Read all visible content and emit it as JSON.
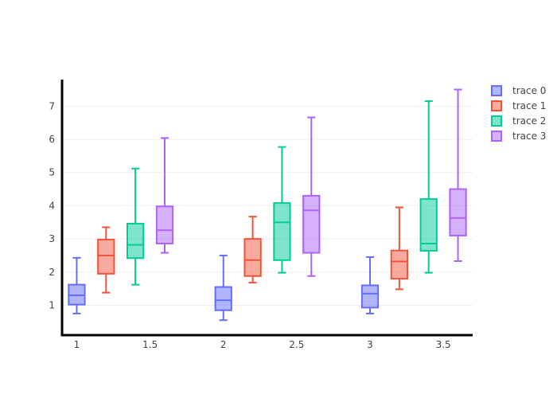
{
  "chart_data": {
    "type": "box",
    "title": "",
    "xlabel": "",
    "ylabel": "",
    "xlim": [
      0.9,
      3.7
    ],
    "ylim": [
      0.1,
      7.8
    ],
    "x_ticks": [
      1,
      1.5,
      2,
      2.5,
      3,
      3.5
    ],
    "x_tick_labels": [
      "1",
      "1.5",
      "2",
      "2.5",
      "3",
      "3.5"
    ],
    "y_ticks": [
      1,
      2,
      3,
      4,
      5,
      6,
      7
    ],
    "y_tick_labels": [
      "1",
      "2",
      "3",
      "4",
      "5",
      "6",
      "7"
    ],
    "box_width": 0.11,
    "grid": "horizontal",
    "legend": "right",
    "series": [
      {
        "name": "trace 0",
        "color": "#636efa",
        "fill": "rgba(99,110,250,0.5)",
        "boxes": [
          {
            "x": 1.0,
            "min": 0.75,
            "q1": 1.02,
            "median": 1.3,
            "q3": 1.62,
            "max": 2.43
          },
          {
            "x": 2.0,
            "min": 0.55,
            "q1": 0.85,
            "median": 1.15,
            "q3": 1.55,
            "max": 2.5
          },
          {
            "x": 3.0,
            "min": 0.75,
            "q1": 0.93,
            "median": 1.35,
            "q3": 1.6,
            "max": 2.45
          }
        ]
      },
      {
        "name": "trace 1",
        "color": "#ef553b",
        "fill": "rgba(239,85,59,0.5)",
        "boxes": [
          {
            "x": 1.2,
            "min": 1.38,
            "q1": 1.95,
            "median": 2.5,
            "q3": 2.98,
            "max": 3.35
          },
          {
            "x": 2.2,
            "min": 1.68,
            "q1": 1.88,
            "median": 2.36,
            "q3": 3.0,
            "max": 3.67
          },
          {
            "x": 3.2,
            "min": 1.48,
            "q1": 1.8,
            "median": 2.32,
            "q3": 2.65,
            "max": 3.95
          }
        ]
      },
      {
        "name": "trace 2",
        "color": "#00cc96",
        "fill": "rgba(0,204,150,0.5)",
        "boxes": [
          {
            "x": 1.4,
            "min": 1.62,
            "q1": 2.42,
            "median": 2.82,
            "q3": 3.46,
            "max": 5.12
          },
          {
            "x": 2.4,
            "min": 1.98,
            "q1": 2.36,
            "median": 3.5,
            "q3": 4.08,
            "max": 5.77
          },
          {
            "x": 3.4,
            "min": 1.98,
            "q1": 2.64,
            "median": 2.86,
            "q3": 4.2,
            "max": 7.15
          }
        ]
      },
      {
        "name": "trace 3",
        "color": "#ab63fa",
        "fill": "rgba(171,99,250,0.5)",
        "boxes": [
          {
            "x": 1.6,
            "min": 2.58,
            "q1": 2.86,
            "median": 3.26,
            "q3": 3.98,
            "max": 6.04
          },
          {
            "x": 2.6,
            "min": 1.88,
            "q1": 2.58,
            "median": 3.86,
            "q3": 4.3,
            "max": 6.66
          },
          {
            "x": 3.6,
            "min": 2.33,
            "q1": 3.1,
            "median": 3.63,
            "q3": 4.5,
            "max": 7.5
          }
        ]
      }
    ]
  }
}
